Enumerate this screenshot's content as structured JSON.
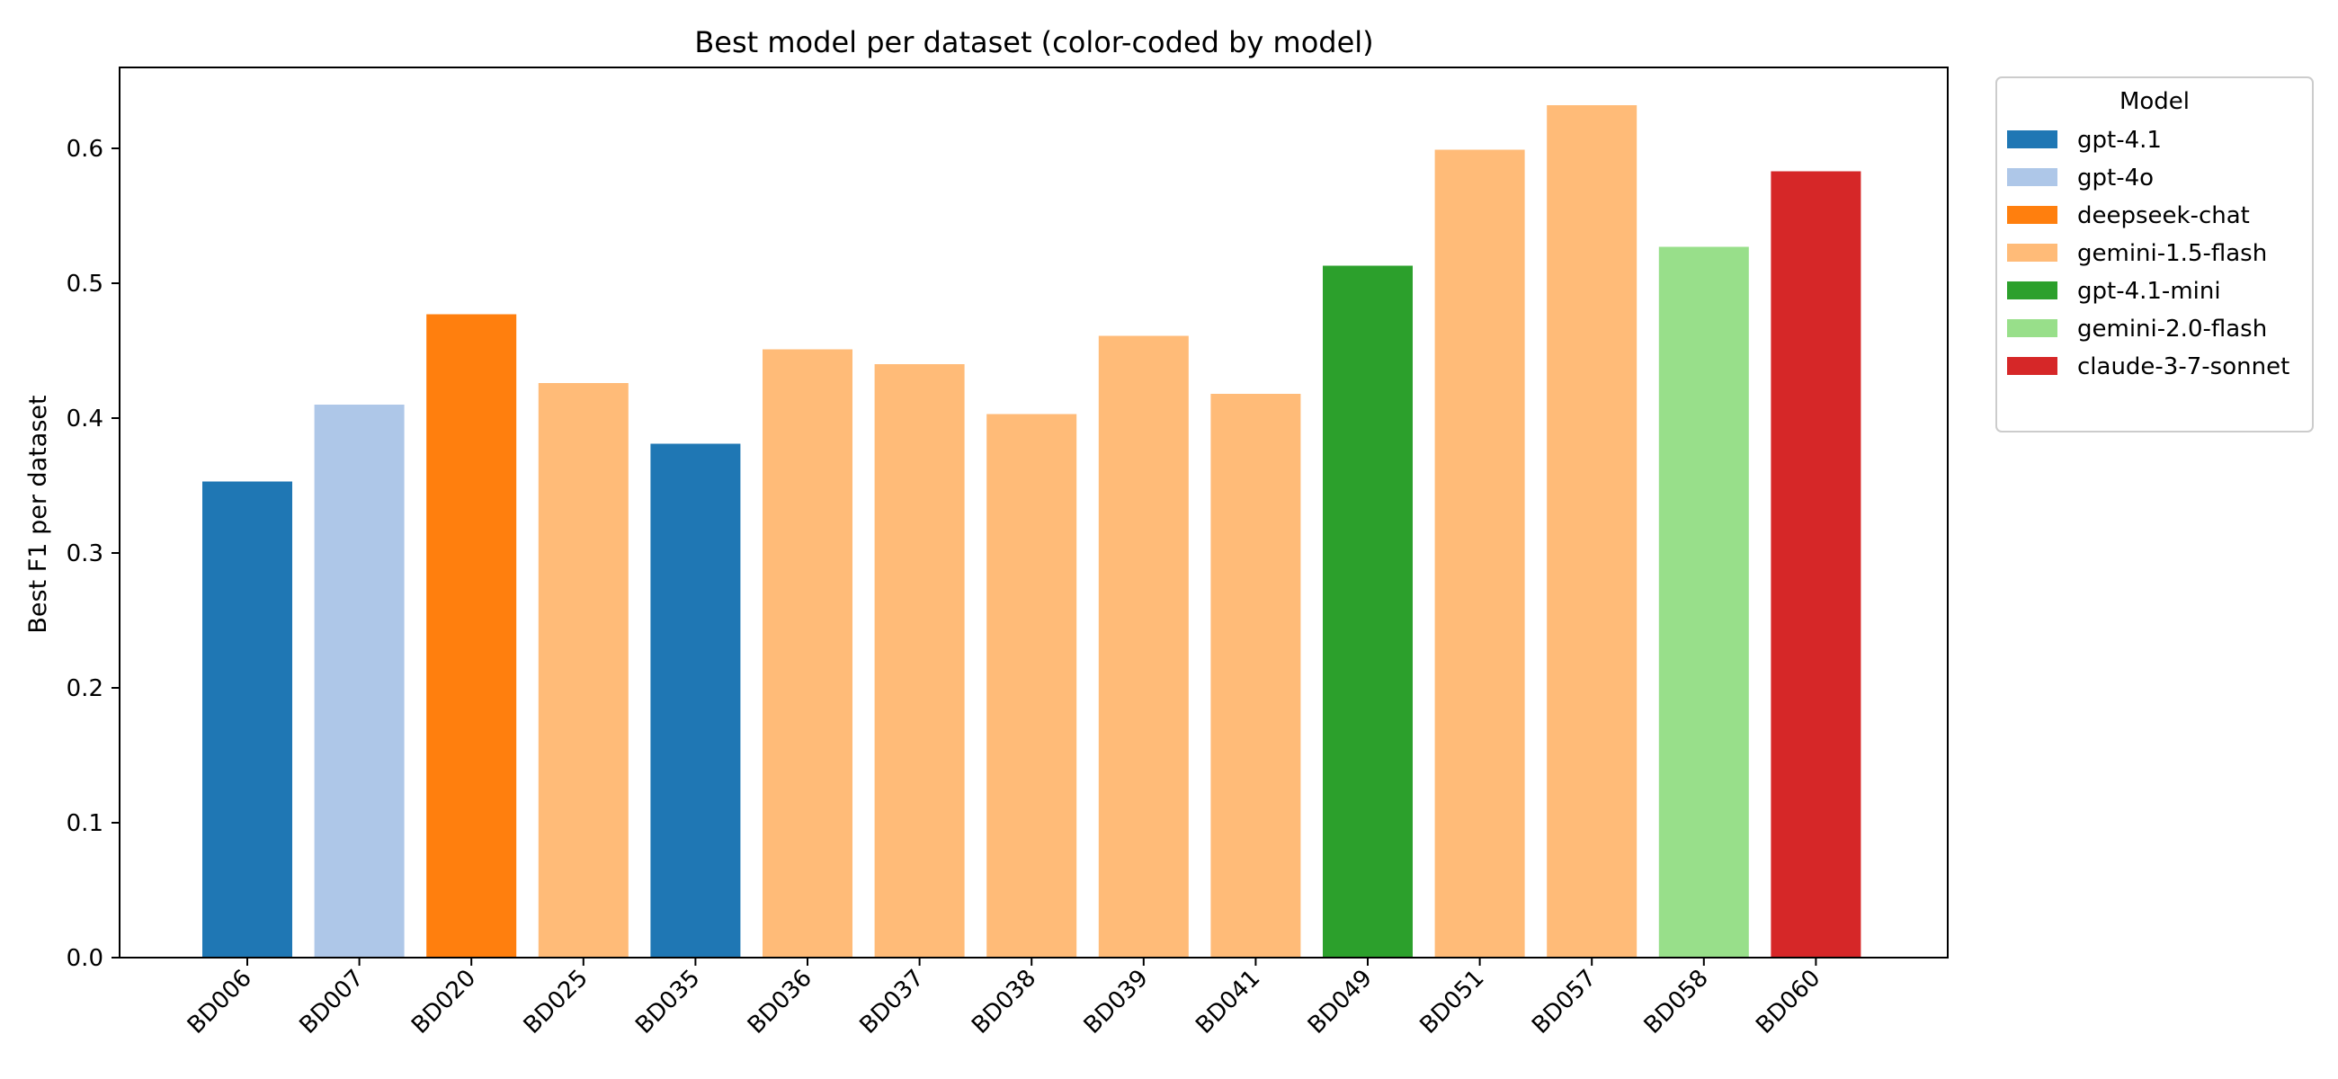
{
  "chart_data": {
    "type": "bar",
    "title": "Best model per dataset (color-coded by model)",
    "xlabel": "",
    "ylabel": "Best F1 per dataset",
    "ylim": [
      0,
      0.66
    ],
    "yticks": [
      "0.0",
      "0.1",
      "0.2",
      "0.3",
      "0.4",
      "0.5",
      "0.6"
    ],
    "categories": [
      "BD006",
      "BD007",
      "BD020",
      "BD025",
      "BD035",
      "BD036",
      "BD037",
      "BD038",
      "BD039",
      "BD041",
      "BD049",
      "BD051",
      "BD057",
      "BD058",
      "BD060"
    ],
    "values": [
      0.353,
      0.41,
      0.477,
      0.426,
      0.381,
      0.451,
      0.44,
      0.403,
      0.461,
      0.418,
      0.513,
      0.599,
      0.632,
      0.527,
      0.583
    ],
    "models": [
      "gpt-4.1",
      "gpt-4o",
      "deepseek-chat",
      "gemini-1.5-flash",
      "gpt-4.1",
      "gemini-1.5-flash",
      "gemini-1.5-flash",
      "gemini-1.5-flash",
      "gemini-1.5-flash",
      "gemini-1.5-flash",
      "gpt-4.1-mini",
      "gemini-1.5-flash",
      "gemini-1.5-flash",
      "gemini-2.0-flash",
      "claude-3-7-sonnet"
    ],
    "legend": {
      "title": "Model",
      "placement": "outside-top-right",
      "entries": [
        {
          "name": "gpt-4.1",
          "color": "#1f77b4"
        },
        {
          "name": "gpt-4o",
          "color": "#aec7e8"
        },
        {
          "name": "deepseek-chat",
          "color": "#ff7f0e"
        },
        {
          "name": "gemini-1.5-flash",
          "color": "#ffbb78"
        },
        {
          "name": "gpt-4.1-mini",
          "color": "#2ca02c"
        },
        {
          "name": "gemini-2.0-flash",
          "color": "#98df8a"
        },
        {
          "name": "claude-3-7-sonnet",
          "color": "#d62728"
        }
      ]
    },
    "grid": false
  }
}
